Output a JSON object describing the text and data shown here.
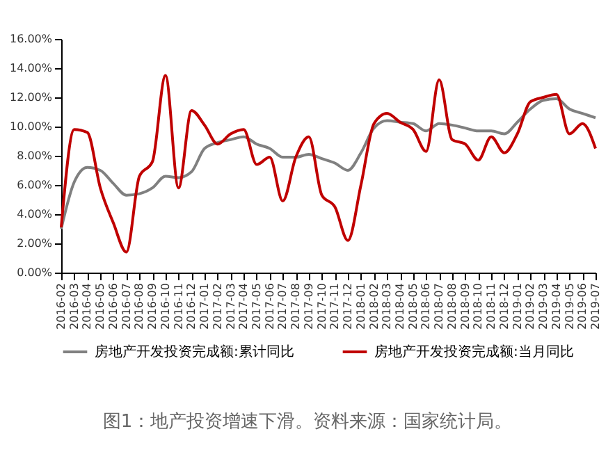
{
  "chart_data": {
    "type": "line",
    "categories": [
      "2016-02",
      "2016-03",
      "2016-04",
      "2016-05",
      "2016-06",
      "2016-07",
      "2016-08",
      "2016-09",
      "2016-10",
      "2016-11",
      "2016-12",
      "2017-01",
      "2017-02",
      "2017-03",
      "2017-04",
      "2017-05",
      "2017-06",
      "2017-07",
      "2017-08",
      "2017-09",
      "2017-10",
      "2017-11",
      "2017-12",
      "2018-01",
      "2018-02",
      "2018-03",
      "2018-04",
      "2018-05",
      "2018-06",
      "2018-07",
      "2018-08",
      "2018-09",
      "2018-10",
      "2018-11",
      "2018-12",
      "2019-01",
      "2019-02",
      "2019-03",
      "2019-04",
      "2019-05",
      "2019-06",
      "2019-07"
    ],
    "series": [
      {
        "name": "房地产开发投资完成额:累计同比",
        "color": "#808080",
        "values": [
          3.0,
          6.2,
          7.2,
          7.0,
          6.1,
          5.3,
          5.4,
          5.8,
          6.6,
          6.5,
          6.9,
          8.5,
          8.9,
          9.1,
          9.3,
          8.8,
          8.5,
          7.9,
          7.9,
          8.1,
          7.8,
          7.5,
          7.0,
          8.2,
          9.9,
          10.4,
          10.3,
          10.2,
          9.7,
          10.2,
          10.1,
          9.9,
          9.7,
          9.7,
          9.5,
          10.3,
          11.2,
          11.8,
          11.9,
          11.2,
          10.9,
          10.6
        ]
      },
      {
        "name": "房地产开发投资完成额:当月同比",
        "color": "#c00000",
        "values": [
          3.1,
          9.8,
          9.6,
          5.8,
          3.4,
          1.4,
          6.6,
          7.6,
          13.5,
          5.8,
          11.1,
          10.1,
          8.8,
          9.5,
          9.8,
          7.4,
          7.9,
          4.9,
          7.9,
          9.3,
          5.3,
          4.5,
          2.2,
          6.0,
          10.2,
          10.9,
          10.3,
          9.8,
          8.3,
          13.2,
          9.1,
          8.8,
          7.7,
          9.3,
          8.2,
          9.5,
          11.7,
          12.0,
          12.2,
          9.5,
          10.2,
          8.5
        ]
      }
    ],
    "ylim": [
      0,
      16
    ],
    "yticks": [
      {
        "value": 0,
        "label": "0.00%"
      },
      {
        "value": 2,
        "label": "2.00%"
      },
      {
        "value": 4,
        "label": "4.00%"
      },
      {
        "value": 6,
        "label": "6.00%"
      },
      {
        "value": 8,
        "label": "8.00%"
      },
      {
        "value": 10,
        "label": "10.00%"
      },
      {
        "value": 12,
        "label": "12.00%"
      },
      {
        "value": 14,
        "label": "14.00%"
      },
      {
        "value": 16,
        "label": "16.00%"
      }
    ],
    "grid": false,
    "legend": "bottom",
    "marker": "none",
    "line_style": "solid",
    "annotations": [
      "图1：地产投资增速下滑。资料来源：国家统计局。"
    ]
  }
}
